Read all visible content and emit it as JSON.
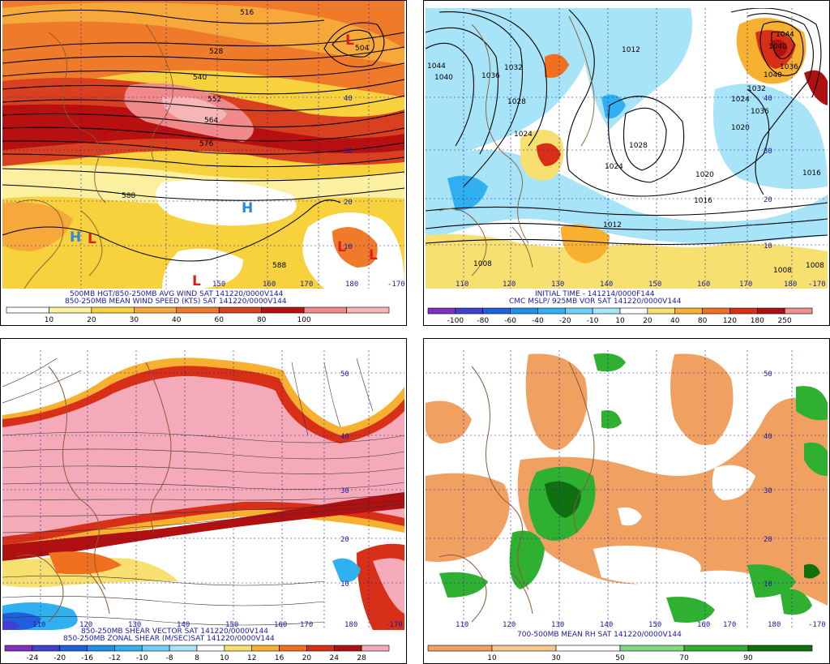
{
  "panels": [
    {
      "id": "p1",
      "caption1": "500MB HGT/850-250MB AVG WIND SAT 141220/0000V144",
      "caption2": "850-250MB MEAN WIND SPEED (KTS) SAT 141220/0000V144",
      "colorbar": {
        "labels": [
          "10",
          "20",
          "30",
          "40",
          "60",
          "80",
          "100"
        ],
        "colors": [
          "#ffffff",
          "#fbf0a0",
          "#f7d23c",
          "#f7a83a",
          "#ef7a2a",
          "#d94020",
          "#b81010",
          "#f08a8a",
          "#f6b6b6"
        ]
      },
      "lat_labels": [
        "40",
        "30",
        "20",
        "10"
      ],
      "lon_labels": [
        "150",
        "160",
        "170",
        "180",
        "-170"
      ],
      "contour_labels": [
        "528",
        "540",
        "552",
        "564",
        "576",
        "588",
        "588",
        "504",
        "516"
      ],
      "systems": [
        {
          "t": "L",
          "c": "#d82020"
        },
        {
          "t": "H",
          "c": "#2a8ad8"
        },
        {
          "t": "H",
          "c": "#2a8ad8"
        },
        {
          "t": "L",
          "c": "#d82020"
        },
        {
          "t": "L",
          "c": "#d82020"
        },
        {
          "t": "L",
          "c": "#d82020"
        },
        {
          "t": "L",
          "c": "#d82020"
        }
      ]
    },
    {
      "id": "p2",
      "caption1": "INITIAL TIME - 141214/0000F144",
      "caption2": "CMC MSLP/ 925MB VOR SAT 141220/0000V144",
      "colorbar": {
        "labels": [
          "-100",
          "-80",
          "-60",
          "-40",
          "-20",
          "-10",
          "10",
          "20",
          "40",
          "80",
          "120",
          "180",
          "250"
        ],
        "colors": [
          "#8030c0",
          "#4040d0",
          "#2060e0",
          "#2090f0",
          "#30b0f0",
          "#70d0f8",
          "#a8e4f8",
          "#ffffff",
          "#f8e070",
          "#f8b030",
          "#f07020",
          "#d83018",
          "#b01010",
          "#f09090"
        ]
      },
      "lat_labels": [
        "40",
        "30",
        "20",
        "10"
      ],
      "lon_labels": [
        "110",
        "120",
        "130",
        "140",
        "150",
        "160",
        "170",
        "180",
        "-170"
      ],
      "contour_labels": [
        "1044",
        "1040",
        "1036",
        "1032",
        "1028",
        "1024",
        "1028",
        "1024",
        "1020",
        "1016",
        "1012",
        "1008",
        "1008",
        "1008",
        "1012",
        "1016",
        "1020",
        "1024",
        "1032",
        "1036",
        "1040",
        "1036",
        "1040",
        "1044"
      ]
    },
    {
      "id": "p3",
      "caption1": "850-250MB SHEAR VECTOR SAT 141220/0000V144",
      "caption2": "850-250MB ZONAL SHEAR (M/SEC)SAT 141220/0000V144",
      "colorbar": {
        "labels": [
          "-24",
          "-20",
          "-16",
          "-12",
          "-10",
          "-8",
          "8",
          "10",
          "12",
          "16",
          "20",
          "24",
          "28"
        ],
        "colors": [
          "#8030c0",
          "#4040d0",
          "#2060e0",
          "#2090f0",
          "#30b0f0",
          "#70d0f8",
          "#a8e4f8",
          "#ffffff",
          "#f8e070",
          "#f8b030",
          "#f07020",
          "#d83018",
          "#b01010",
          "#f4aab8"
        ]
      },
      "lat_labels": [
        "50",
        "40",
        "30",
        "20",
        "10"
      ],
      "lon_labels": [
        "110",
        "120",
        "130",
        "140",
        "150",
        "160",
        "170",
        "180",
        "-170"
      ]
    },
    {
      "id": "p4",
      "caption1": "700-500MB MEAN RH SAT 141220/0000V144",
      "colorbar": {
        "labels": [
          "10",
          "30",
          "50",
          "70",
          "90"
        ],
        "colors": [
          "#f0a060",
          "#f8c890",
          "#ffffff",
          "#80d880",
          "#30b030",
          "#107010"
        ]
      },
      "lat_labels": [
        "50",
        "40",
        "30",
        "20",
        "10"
      ],
      "lon_labels": [
        "110",
        "120",
        "130",
        "140",
        "150",
        "160",
        "170",
        "180",
        "-170"
      ]
    }
  ]
}
